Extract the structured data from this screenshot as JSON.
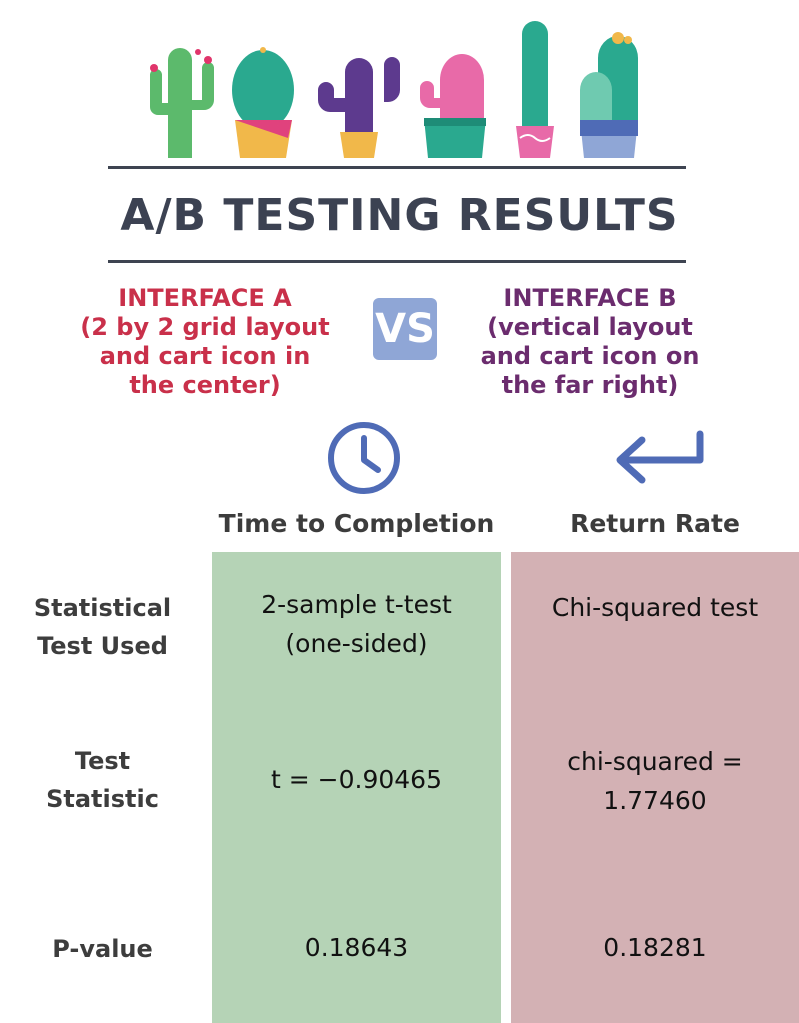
{
  "title": "A/B TESTING RESULTS",
  "interface_a": {
    "name": "INTERFACE A",
    "description_lines": [
      "(2 by 2 grid layout",
      "and cart icon in",
      "the center)"
    ]
  },
  "interface_b": {
    "name": "INTERFACE B",
    "description_lines": [
      "(vertical layout",
      "and cart icon on",
      "the far right)"
    ]
  },
  "vs_label": "VS",
  "columns": [
    {
      "label": "Time to Completion",
      "icon": "clock-icon"
    },
    {
      "label": "Return Rate",
      "icon": "return-arrow-icon"
    }
  ],
  "rows": [
    {
      "label_lines": [
        "Statistical",
        "Test Used"
      ],
      "time_lines": [
        "2-sample t-test",
        "(one-sided)"
      ],
      "return_lines": [
        "Chi-squared test"
      ]
    },
    {
      "label_lines": [
        "Test",
        "Statistic"
      ],
      "time_lines": [
        "t = −0.90465"
      ],
      "return_lines": [
        "chi-squared =",
        "1.77460"
      ]
    },
    {
      "label_lines": [
        "P-value"
      ],
      "time_lines": [
        "0.18643"
      ],
      "return_lines": [
        "0.18281"
      ]
    }
  ],
  "colors": {
    "interface_a": "#c9304a",
    "interface_b": "#6b2c6e",
    "vs_box": "#8fa6d6",
    "icon_blue": "#4f6bb6",
    "time_column": "#b5d3b6",
    "return_column": "#d3b1b4"
  },
  "decorations": [
    "cactus-icon",
    "cactus-icon",
    "cactus-icon",
    "cactus-icon",
    "cactus-icon",
    "cactus-icon"
  ]
}
